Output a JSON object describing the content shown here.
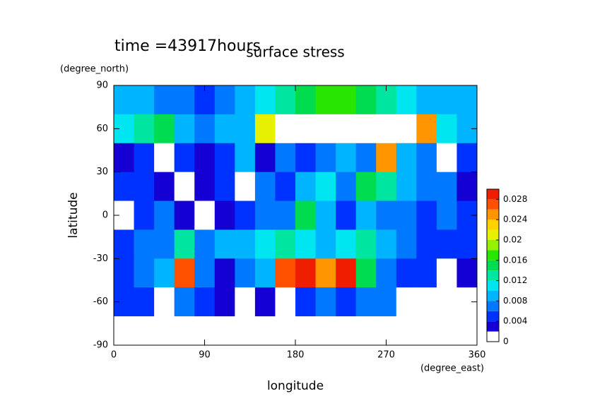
{
  "chart_data": {
    "type": "contour",
    "title": "surface stress",
    "subtitle": "time =43917hours",
    "x_label": "longitude",
    "x_unit": "(degree_east)",
    "y_label": "latitude",
    "y_unit": "(degree_north)",
    "xlim": [
      0,
      360
    ],
    "ylim": [
      -90,
      90
    ],
    "xticks": [
      0,
      90,
      180,
      270,
      360
    ],
    "yticks": [
      -90,
      -60,
      -30,
      0,
      30,
      60,
      90
    ],
    "x": [
      10,
      30,
      50,
      70,
      90,
      110,
      130,
      150,
      170,
      190,
      210,
      230,
      250,
      270,
      290,
      310,
      330,
      350
    ],
    "y": [
      80,
      60,
      40,
      20,
      0,
      -20,
      -40,
      -60,
      -80
    ],
    "z": [
      [
        0.008,
        0.008,
        0.006,
        0.006,
        0.005,
        0.006,
        0.008,
        0.01,
        0.012,
        0.014,
        0.016,
        0.016,
        0.014,
        0.012,
        0.01,
        0.008,
        0.008,
        0.008
      ],
      [
        0.01,
        0.012,
        0.014,
        0.008,
        0.006,
        0.008,
        0.008,
        0.02,
        0.03,
        0.032,
        0.032,
        0.032,
        0.032,
        0.03,
        0.03,
        0.024,
        0.01,
        0.008
      ],
      [
        0.002,
        0.004,
        0.001,
        0.004,
        0.002,
        0.004,
        0.008,
        0.003,
        0.006,
        0.004,
        0.006,
        0.008,
        0.006,
        0.024,
        0.008,
        0.006,
        0.001,
        0.004
      ],
      [
        0.004,
        0.004,
        0.003,
        0.001,
        0.002,
        0.004,
        0.001,
        0.006,
        0.004,
        0.008,
        0.01,
        0.006,
        0.014,
        0.012,
        0.008,
        0.006,
        0.006,
        0.002
      ],
      [
        0.001,
        0.004,
        0.006,
        0.003,
        0.001,
        0.002,
        0.004,
        0.006,
        0.006,
        0.014,
        0.008,
        0.004,
        0.008,
        0.006,
        0.006,
        0.004,
        0.006,
        0.004
      ],
      [
        0.004,
        0.006,
        0.006,
        0.012,
        0.006,
        0.008,
        0.008,
        0.01,
        0.012,
        0.01,
        0.008,
        0.01,
        0.012,
        0.008,
        0.006,
        0.004,
        0.004,
        0.004
      ],
      [
        0.004,
        0.006,
        0.008,
        0.026,
        0.006,
        0.002,
        0.006,
        0.008,
        0.026,
        0.028,
        0.024,
        0.028,
        0.014,
        0.006,
        0.004,
        0.004,
        0.001,
        0.002
      ],
      [
        0.004,
        0.004,
        0.001,
        0.006,
        0.004,
        0.002,
        0.001,
        0.002,
        0.001,
        0.004,
        0.006,
        0.004,
        0.006,
        0.006,
        0.001,
        0.001,
        0.001,
        0.001
      ],
      [
        0,
        0,
        0,
        0,
        0,
        0,
        0,
        0,
        0,
        0,
        0,
        0,
        0,
        0,
        0,
        0,
        0,
        0
      ]
    ],
    "levels": [
      0,
      0.002,
      0.004,
      0.006,
      0.008,
      0.01,
      0.012,
      0.014,
      0.016,
      0.018,
      0.02,
      0.022,
      0.024,
      0.026,
      0.028,
      0.03
    ],
    "colors": [
      "#ffffff",
      "#1400d2",
      "#0032ff",
      "#0078ff",
      "#00b4ff",
      "#00e6f0",
      "#00e6a0",
      "#00dc50",
      "#28e600",
      "#96f000",
      "#e6f000",
      "#ffd200",
      "#ff9600",
      "#ff5000",
      "#f01e00"
    ],
    "over_color": "#ffffff",
    "zlim": [
      0,
      0.03
    ],
    "colorbar_ticks": [
      0,
      0.004,
      0.008,
      0.012,
      0.016,
      0.02,
      0.024,
      0.028
    ]
  }
}
